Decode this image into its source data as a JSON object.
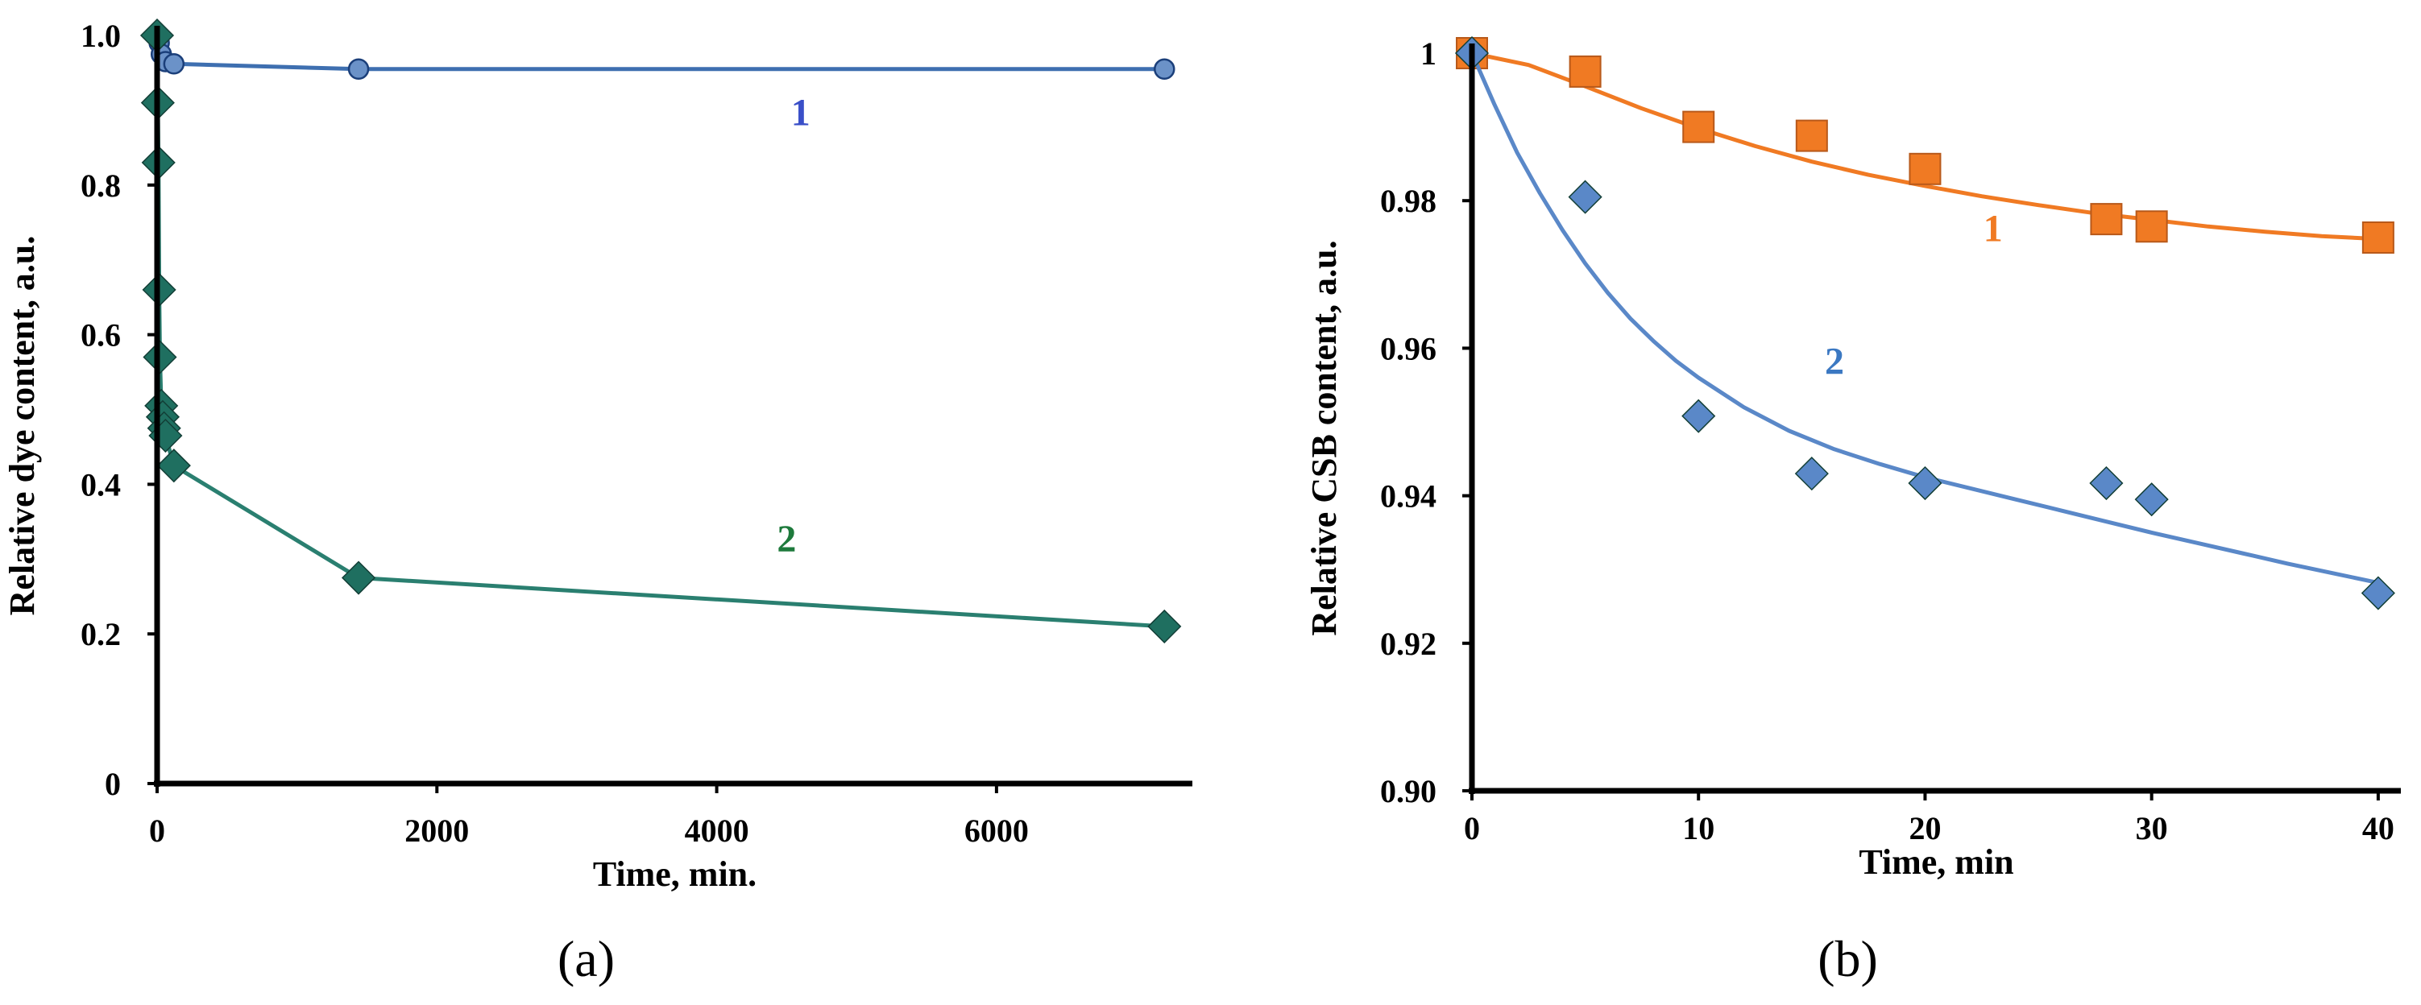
{
  "chart_data": [
    {
      "id": "a",
      "type": "line",
      "panel_label": "(a)",
      "title": "",
      "xlabel": "Time, min.",
      "ylabel": "Relative dye content, a.u.",
      "xlim": [
        0,
        7400
      ],
      "ylim": [
        0,
        1.0
      ],
      "xticks": [
        0,
        2000,
        4000,
        6000
      ],
      "xtick_labels": [
        "0",
        "2000",
        "4000",
        "6000"
      ],
      "yticks": [
        0,
        0.2,
        0.4,
        0.6,
        0.8,
        1.0
      ],
      "ytick_labels": [
        "0",
        "0.2",
        "0.4",
        "0.6",
        "0.8",
        "1.0"
      ],
      "grid": false,
      "series": [
        {
          "name": "1",
          "label": "1",
          "color": "#6b92c8",
          "line_color": "#3e6fb0",
          "label_color": "#3a4fc8",
          "marker": "circle",
          "label_pos": [
            4600,
            0.88
          ],
          "x": [
            0,
            15,
            30,
            60,
            120,
            1440,
            7200
          ],
          "y": [
            1.0,
            0.99,
            0.975,
            0.965,
            0.962,
            0.955,
            0.955
          ]
        },
        {
          "name": "2",
          "label": "2",
          "color": "#1f6f60",
          "line_color": "#2a7f70",
          "label_color": "#1e7a3c",
          "marker": "diamond",
          "label_pos": [
            4500,
            0.31
          ],
          "x": [
            0,
            5,
            10,
            15,
            20,
            30,
            40,
            50,
            60,
            120,
            1440,
            7200
          ],
          "y": [
            1.0,
            0.91,
            0.83,
            0.66,
            0.57,
            0.505,
            0.49,
            0.475,
            0.465,
            0.425,
            0.275,
            0.21
          ]
        }
      ]
    },
    {
      "id": "b",
      "type": "scatter",
      "panel_label": "(b)",
      "title": "",
      "xlabel": "Time, min",
      "ylabel": "Relative CSB content, a.u.",
      "xlim": [
        0,
        41
      ],
      "ylim": [
        0.9,
        1.0
      ],
      "xticks": [
        0,
        10,
        20,
        30,
        40
      ],
      "xtick_labels": [
        "0",
        "10",
        "20",
        "30",
        "40"
      ],
      "yticks": [
        0.9,
        0.92,
        0.94,
        0.96,
        0.98,
        1.0
      ],
      "ytick_labels": [
        "0.90",
        "0.92",
        "0.94",
        "0.96",
        "0.98",
        "1"
      ],
      "grid": false,
      "series": [
        {
          "name": "1",
          "label": "1",
          "color": "#f07a23",
          "label_color": "#f07a23",
          "marker": "square",
          "label_pos": [
            23,
            0.9745
          ],
          "x": [
            0,
            5,
            10,
            15,
            20,
            28,
            30,
            40
          ],
          "y": [
            1.0,
            0.9975,
            0.99,
            0.9888,
            0.9843,
            0.9775,
            0.9765,
            0.975
          ],
          "fit": {
            "x": [
              0,
              2.5,
              5,
              7.5,
              10,
              12.5,
              15,
              17.5,
              20,
              22.5,
              25,
              27.5,
              30,
              32.5,
              35,
              37.5,
              40
            ],
            "y": [
              1.0,
              0.9984,
              0.9955,
              0.9925,
              0.9898,
              0.9874,
              0.9853,
              0.9835,
              0.982,
              0.9806,
              0.9794,
              0.9783,
              0.9774,
              0.9765,
              0.9758,
              0.9752,
              0.9748
            ]
          }
        },
        {
          "name": "2",
          "label": "2",
          "color": "#5a88c8",
          "label_color": "#3b78c2",
          "marker": "diamond",
          "label_pos": [
            16,
            0.9565
          ],
          "x": [
            0,
            5,
            10,
            15,
            20,
            28,
            30,
            40
          ],
          "y": [
            1.0,
            0.9805,
            0.9508,
            0.943,
            0.9417,
            0.9417,
            0.9395,
            0.9268
          ],
          "fit": {
            "x": [
              0,
              1,
              2,
              3,
              4,
              5,
              6,
              7,
              8,
              9,
              10,
              12,
              14,
              16,
              18,
              20,
              22,
              24,
              26,
              28,
              30,
              32,
              34,
              36,
              38,
              40
            ],
            "y": [
              1.0,
              0.993,
              0.9865,
              0.981,
              0.976,
              0.9715,
              0.9675,
              0.964,
              0.961,
              0.9583,
              0.956,
              0.952,
              0.9488,
              0.9463,
              0.9443,
              0.9425,
              0.941,
              0.9395,
              0.938,
              0.9365,
              0.935,
              0.9336,
              0.9322,
              0.9308,
              0.9295,
              0.9282
            ]
          }
        }
      ]
    }
  ]
}
